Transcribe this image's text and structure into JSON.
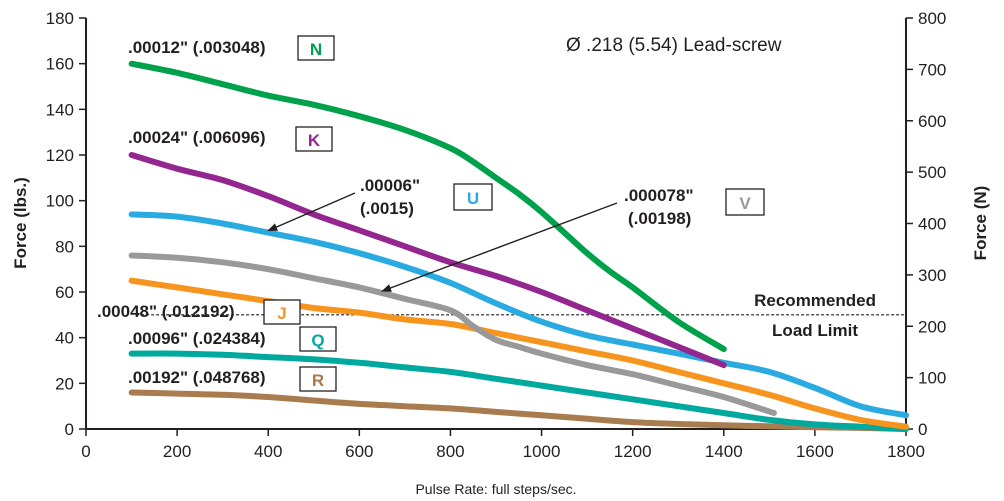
{
  "chart_data": {
    "type": "line",
    "title": "Ø .218 (5.54) Lead-screw",
    "xlabel": "Pulse Rate: full steps/sec.",
    "ylabel": "Force (lbs.)",
    "ylabel_right": "Force (N)",
    "xlim": [
      0,
      1800
    ],
    "ylim": [
      0,
      180
    ],
    "ylim_right": [
      0,
      800
    ],
    "x_ticks": [
      "0",
      "200",
      "400",
      "600",
      "800",
      "1000",
      "1200",
      "1400",
      "1600",
      "1800"
    ],
    "y_ticks": [
      "0",
      "20",
      "40",
      "60",
      "80",
      "100",
      "120",
      "140",
      "160",
      "180"
    ],
    "y_ticks_right": [
      "0",
      "100",
      "200",
      "300",
      "400",
      "500",
      "600",
      "700",
      "800"
    ],
    "grid": false,
    "series": [
      {
        "name": "N",
        "color": "#00a14b",
        "label": ".00012\" (.003048)",
        "x": [
          100,
          200,
          300,
          400,
          500,
          600,
          700,
          800,
          850,
          900,
          950,
          1000,
          1050,
          1100,
          1150,
          1200,
          1300,
          1400
        ],
        "y": [
          160,
          156,
          151,
          146,
          142,
          137,
          131,
          123,
          117,
          110,
          103,
          95,
          86,
          77,
          69,
          62,
          47,
          35
        ]
      },
      {
        "name": "K",
        "color": "#93278f",
        "label": ".00024\" (.006096)",
        "x": [
          100,
          200,
          300,
          400,
          500,
          600,
          700,
          800,
          900,
          1000,
          1100,
          1200,
          1300,
          1400
        ],
        "y": [
          120,
          114,
          109,
          102,
          94,
          87,
          80,
          73,
          67,
          60,
          52,
          44,
          36,
          28
        ]
      },
      {
        "name": "U",
        "color": "#29abe2",
        "label": ".00006\" (.0015)",
        "x": [
          100,
          200,
          300,
          400,
          500,
          600,
          700,
          800,
          900,
          1000,
          1100,
          1200,
          1300,
          1400,
          1500,
          1600,
          1700,
          1800
        ],
        "y": [
          94,
          93,
          90,
          86,
          82,
          77,
          71,
          64,
          55,
          47,
          41,
          37,
          33,
          29,
          25,
          18,
          10,
          6
        ]
      },
      {
        "name": "V",
        "color": "#999999",
        "label": ".000078\" (.00198)",
        "x": [
          100,
          200,
          300,
          400,
          500,
          600,
          700,
          800,
          850,
          900,
          950,
          1000,
          1100,
          1200,
          1300,
          1400,
          1510
        ],
        "y": [
          76,
          75,
          73,
          70,
          66,
          62,
          57,
          52,
          45,
          39,
          36,
          33,
          28,
          24,
          19,
          14,
          7
        ]
      },
      {
        "name": "J",
        "color": "#f7941d",
        "label": ".00048\" (.012192)",
        "x": [
          100,
          200,
          300,
          400,
          500,
          600,
          700,
          800,
          900,
          1000,
          1100,
          1200,
          1300,
          1400,
          1500,
          1600,
          1700,
          1800
        ],
        "y": [
          65,
          62,
          59,
          56,
          53,
          51,
          48,
          46,
          42,
          38,
          34,
          30,
          25,
          20,
          15,
          9,
          4,
          1
        ]
      },
      {
        "name": "Q",
        "color": "#00a99d",
        "label": ".00096\" (.024384)",
        "x": [
          100,
          200,
          300,
          400,
          500,
          600,
          700,
          800,
          900,
          1000,
          1100,
          1200,
          1300,
          1400,
          1500,
          1600,
          1700,
          1800
        ],
        "y": [
          33,
          33,
          32.5,
          31.5,
          30.5,
          29,
          27,
          25,
          22,
          19,
          16,
          13,
          10,
          7,
          4,
          2,
          1,
          0
        ]
      },
      {
        "name": "R",
        "color": "#a97c50",
        "label": ".00192\" (.048768)",
        "x": [
          100,
          200,
          300,
          400,
          500,
          600,
          700,
          800,
          900,
          1000,
          1100,
          1200,
          1300,
          1400,
          1500,
          1600,
          1700,
          1800
        ],
        "y": [
          16,
          15.5,
          15,
          14,
          12.5,
          11,
          10,
          9,
          7.5,
          6,
          4.5,
          3,
          2.2,
          1.6,
          1.2,
          0.8,
          0.5,
          0
        ]
      }
    ],
    "reference_line": {
      "y": 50,
      "x_from": 110,
      "x_to": 1800,
      "label_line1": "Recommended",
      "label_line2": "Load Limit"
    },
    "badges": [
      {
        "letter": "N",
        "color": "#00a14b",
        "label": ".00012\" (.003048)"
      },
      {
        "letter": "K",
        "color": "#93278f",
        "label": ".00024\" (.006096)"
      },
      {
        "letter": "J",
        "color": "#f7941d",
        "label": ".00048\" (.012192)"
      },
      {
        "letter": "Q",
        "color": "#00a99d",
        "label": ".00096\" (.024384)"
      },
      {
        "letter": "R",
        "color": "#a97c50",
        "label": ".00192\" (.048768)"
      },
      {
        "letter": "U",
        "color": "#29abe2",
        "label_line1": ".00006\"",
        "label_line2": "(.0015)"
      },
      {
        "letter": "V",
        "color": "#999999",
        "label_line1": ".000078\"",
        "label_line2": "(.00198)"
      }
    ]
  }
}
